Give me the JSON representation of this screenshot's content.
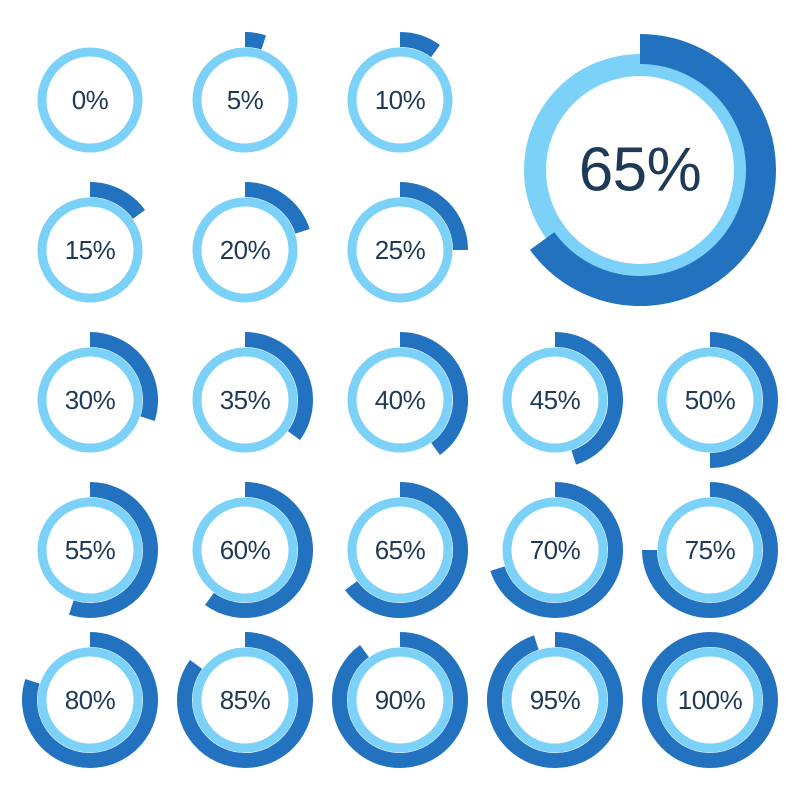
{
  "colors": {
    "progress": "#2272c0",
    "track": "#7bd1f7",
    "text": "#1f3a56",
    "background": "#ffffff"
  },
  "large_indicator": {
    "value": 65,
    "label": "65%"
  },
  "indicators": [
    {
      "value": 0,
      "label": "0%"
    },
    {
      "value": 5,
      "label": "5%"
    },
    {
      "value": 10,
      "label": "10%"
    },
    {
      "value": 15,
      "label": "15%"
    },
    {
      "value": 20,
      "label": "20%"
    },
    {
      "value": 25,
      "label": "25%"
    },
    {
      "value": 30,
      "label": "30%"
    },
    {
      "value": 35,
      "label": "35%"
    },
    {
      "value": 40,
      "label": "40%"
    },
    {
      "value": 45,
      "label": "45%"
    },
    {
      "value": 50,
      "label": "50%"
    },
    {
      "value": 55,
      "label": "55%"
    },
    {
      "value": 60,
      "label": "60%"
    },
    {
      "value": 65,
      "label": "65%"
    },
    {
      "value": 70,
      "label": "70%"
    },
    {
      "value": 75,
      "label": "75%"
    },
    {
      "value": 80,
      "label": "80%"
    },
    {
      "value": 85,
      "label": "85%"
    },
    {
      "value": 90,
      "label": "90%"
    },
    {
      "value": 95,
      "label": "95%"
    },
    {
      "value": 100,
      "label": "100%"
    }
  ]
}
